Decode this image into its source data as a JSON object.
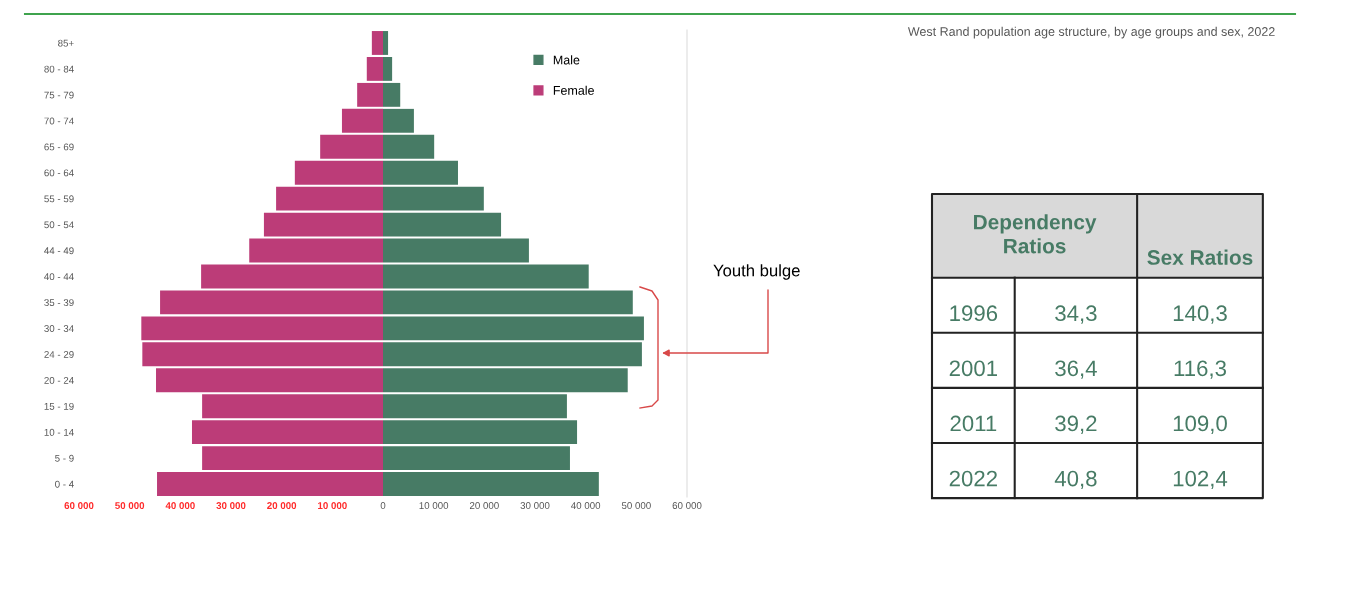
{
  "chart_data": [
    {
      "type": "bar",
      "orientation": "horizontal",
      "stacked": true,
      "categories": [
        "85+",
        "80 - 84",
        "75 - 79",
        "70 - 74",
        "65 - 69",
        "60 - 64",
        "55 - 59",
        "50 - 54",
        "44 - 49",
        "40 - 44",
        "35 - 39",
        "30 - 34",
        "24 - 29",
        "20 - 24",
        "15 - 19",
        "10 - 14",
        "5 - 9",
        "0 - 4"
      ],
      "series": [
        {
          "name": "Male",
          "color": "#477b65",
          "values": [
            1000,
            1800,
            3400,
            6100,
            10100,
            14800,
            19900,
            23300,
            28800,
            40600,
            49300,
            51500,
            51100,
            48300,
            36300,
            38300,
            36900,
            42600
          ]
        },
        {
          "name": "Female",
          "color": "#bc3c78",
          "values": [
            -2200,
            -3200,
            -5100,
            -8100,
            -12400,
            -17400,
            -21100,
            -23500,
            -26400,
            -35900,
            -44000,
            -47700,
            -47500,
            -44800,
            -35700,
            -37700,
            -35700,
            -44600
          ]
        }
      ],
      "xlim": [
        -60000,
        60000
      ],
      "xticks": [
        {
          "value": -60000,
          "label": "60 000"
        },
        {
          "value": -50000,
          "label": "50 000"
        },
        {
          "value": -40000,
          "label": "40 000"
        },
        {
          "value": -30000,
          "label": "30 000"
        },
        {
          "value": -20000,
          "label": "20 000"
        },
        {
          "value": -10000,
          "label": "10 000"
        },
        0,
        {
          "value": 10000,
          "label": "10 000"
        },
        {
          "value": 20000,
          "label": "20 000"
        },
        {
          "value": 30000,
          "label": "30 000"
        },
        {
          "value": 40000,
          "label": "40 000"
        },
        {
          "value": 50000,
          "label": "50 000"
        },
        {
          "value": 60000,
          "label": "60 000"
        }
      ],
      "annotations": [
        "Youth bulge"
      ],
      "legend": "top right",
      "grid": false
    },
    {
      "type": "other",
      "title": "West Rand population age structure, by age groups and sex, 2022",
      "annotations": [
        "Dependency Ratios",
        "Sex Ratios",
        "1996",
        "34,3",
        "140,3",
        "2001",
        "36,4",
        "116,3",
        "2011",
        "39,2",
        "109,0",
        "2022",
        "40,8",
        "102,4"
      ]
    }
  ]
}
